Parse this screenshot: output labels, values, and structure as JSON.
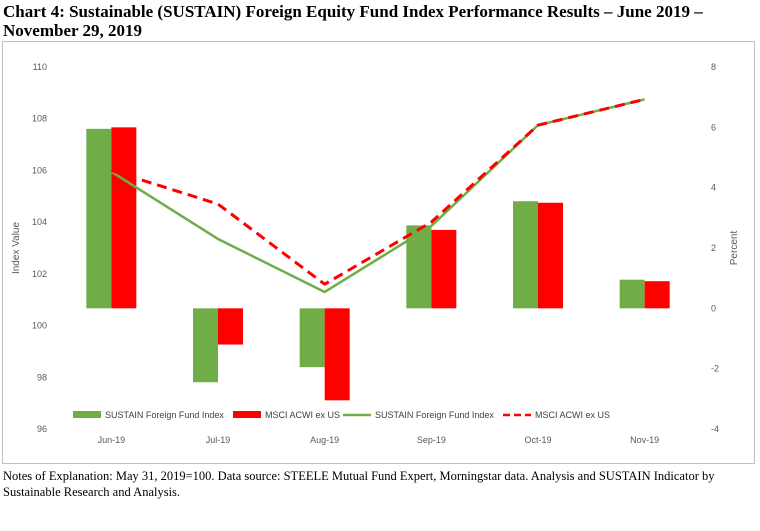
{
  "title": "Chart 4: Sustainable (SUSTAIN) Foreign Equity Fund Index Performance Results – June 2019 – November 29, 2019",
  "notes": "Notes of Explanation:  May 31, 2019=100.  Data source:  STEELE Mutual Fund Expert, Morningstar data. Analysis and SUSTAIN Indicator by Sustainable Research and Analysis.",
  "chart_data": {
    "type": "bar",
    "categories": [
      "Jun-19",
      "Jul-19",
      "Aug-19",
      "Sep-19",
      "Oct-19",
      "Nov-19"
    ],
    "ylabel": "Index Value",
    "y2label": "Percent",
    "ylim": [
      96,
      110
    ],
    "y_ticks": [
      "110",
      "108",
      "106",
      "104",
      "102",
      "100",
      "98",
      "96"
    ],
    "y2lim": [
      -4,
      8
    ],
    "y2_ticks": [
      "8",
      "6",
      "4",
      "2",
      "0",
      "-2",
      "-4"
    ],
    "bar_series": [
      {
        "name": "SUSTAIN Foreign Fund Index",
        "color": "#70ad47",
        "values": [
          5.95,
          -2.45,
          -1.95,
          2.75,
          3.55,
          0.95
        ]
      },
      {
        "name": "MSCI ACWI ex US",
        "color": "#ff0000",
        "values": [
          6.0,
          -1.2,
          -3.05,
          2.6,
          3.5,
          0.9
        ]
      }
    ],
    "line_series": [
      {
        "name": "SUSTAIN Foreign Fund Index",
        "color": "#70ad47",
        "style": "solid",
        "values": [
          105.95,
          103.35,
          101.3,
          103.85,
          107.75,
          108.75
        ]
      },
      {
        "name": "MSCI ACWI ex US",
        "color": "#ff0000",
        "style": "dashed",
        "values": [
          106.0,
          104.7,
          101.6,
          104.0,
          107.75,
          108.75
        ]
      }
    ],
    "legend_position": "bottom-left",
    "grid": false
  }
}
